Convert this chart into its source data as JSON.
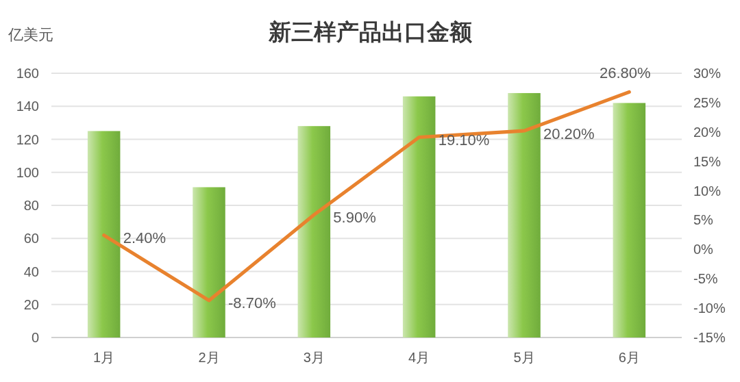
{
  "chart_data": {
    "type": "bar",
    "title": "新三样产品出口金额",
    "ylabel": "亿美元",
    "categories": [
      "1月",
      "2月",
      "3月",
      "4月",
      "5月",
      "6月"
    ],
    "series": [
      {
        "color": "#8cc84b",
        "values": [
          125,
          91,
          128,
          146,
          148,
          142
        ]
      },
      {
        "type": "line",
        "axis": "y2",
        "color": "#e8822e",
        "values": [
          2.4,
          -8.7,
          5.9,
          19.1,
          20.2,
          26.8
        ],
        "value_labels": [
          "2.40%",
          "-8.70%",
          "5.90%",
          "19.10%",
          "20.20%",
          "26.80%"
        ]
      }
    ],
    "ylim": [
      0,
      160
    ],
    "yticks": [
      0,
      20,
      40,
      60,
      80,
      100,
      120,
      140,
      160
    ],
    "y2lim": [
      -15,
      30
    ],
    "y2ticks": [
      {
        "value": -15,
        "label": "-15%"
      },
      {
        "value": -10,
        "label": "-10%"
      },
      {
        "value": -5,
        "label": "-5%"
      },
      {
        "value": 0,
        "label": "0%"
      },
      {
        "value": 5,
        "label": "5%"
      },
      {
        "value": 10,
        "label": "10%"
      },
      {
        "value": 15,
        "label": "15%"
      },
      {
        "value": 20,
        "label": "20%"
      },
      {
        "value": 25,
        "label": "25%"
      },
      {
        "value": 30,
        "label": "30%"
      }
    ],
    "grid": "y"
  }
}
